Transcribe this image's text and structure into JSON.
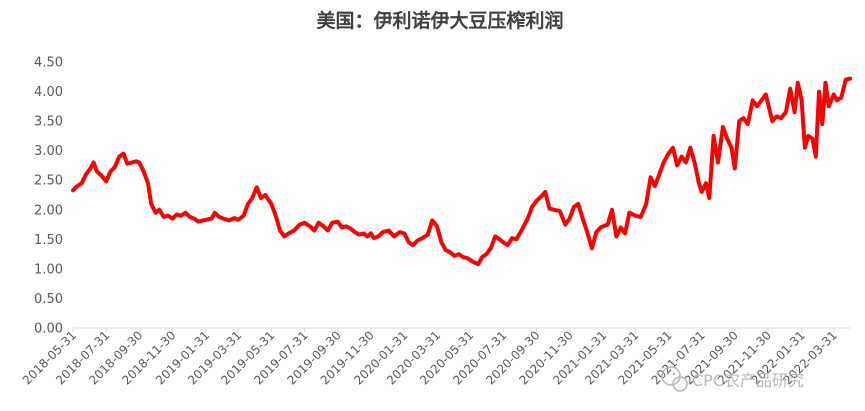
{
  "chart_data": {
    "type": "line",
    "title": "美国：伊利诺伊大豆压榨利润",
    "xlabel": "",
    "ylabel": "",
    "ylim": [
      0,
      4.5
    ],
    "yticks": [
      "0.00",
      "0.50",
      "1.00",
      "1.50",
      "2.00",
      "2.50",
      "3.00",
      "3.50",
      "4.00",
      "4.50"
    ],
    "xticks": [
      "2018-05-31",
      "2018-07-31",
      "2018-09-30",
      "2018-11-30",
      "2019-01-31",
      "2019-03-31",
      "2019-05-31",
      "2019-07-31",
      "2019-09-30",
      "2019-11-30",
      "2020-01-31",
      "2020-03-31",
      "2020-05-31",
      "2020-07-31",
      "2020-09-30",
      "2020-11-30",
      "2021-01-31",
      "2021-03-31",
      "2021-05-31",
      "2021-07-31",
      "2021-09-30",
      "2021-11-30",
      "2022-01-31",
      "2022-03-31"
    ],
    "x_range": [
      "2018-05-31",
      "2022-04-30"
    ],
    "grid": false,
    "legend": "none",
    "line_color": "#ff0000",
    "series": [
      {
        "points": [
          [
            "2018-05-31",
            2.33
          ],
          [
            "2018-06-08",
            2.4
          ],
          [
            "2018-06-16",
            2.45
          ],
          [
            "2018-06-24",
            2.6
          ],
          [
            "2018-07-02",
            2.7
          ],
          [
            "2018-07-08",
            2.8
          ],
          [
            "2018-07-14",
            2.65
          ],
          [
            "2018-07-22",
            2.58
          ],
          [
            "2018-07-31",
            2.48
          ],
          [
            "2018-08-08",
            2.65
          ],
          [
            "2018-08-16",
            2.72
          ],
          [
            "2018-08-24",
            2.9
          ],
          [
            "2018-09-01",
            2.95
          ],
          [
            "2018-09-08",
            2.78
          ],
          [
            "2018-09-16",
            2.8
          ],
          [
            "2018-09-24",
            2.82
          ],
          [
            "2018-09-30",
            2.8
          ],
          [
            "2018-10-08",
            2.65
          ],
          [
            "2018-10-16",
            2.45
          ],
          [
            "2018-10-22",
            2.1
          ],
          [
            "2018-10-30",
            1.95
          ],
          [
            "2018-11-06",
            2.0
          ],
          [
            "2018-11-14",
            1.88
          ],
          [
            "2018-11-22",
            1.9
          ],
          [
            "2018-11-30",
            1.85
          ],
          [
            "2018-12-08",
            1.92
          ],
          [
            "2018-12-16",
            1.9
          ],
          [
            "2018-12-24",
            1.95
          ],
          [
            "2019-01-01",
            1.88
          ],
          [
            "2019-01-09",
            1.85
          ],
          [
            "2019-01-17",
            1.8
          ],
          [
            "2019-01-25",
            1.82
          ],
          [
            "2019-01-31",
            1.83
          ],
          [
            "2019-02-10",
            1.85
          ],
          [
            "2019-02-16",
            1.95
          ],
          [
            "2019-02-24",
            1.88
          ],
          [
            "2019-03-04",
            1.85
          ],
          [
            "2019-03-14",
            1.82
          ],
          [
            "2019-03-24",
            1.86
          ],
          [
            "2019-03-31",
            1.83
          ],
          [
            "2019-04-10",
            1.9
          ],
          [
            "2019-04-18",
            2.1
          ],
          [
            "2019-04-26",
            2.2
          ],
          [
            "2019-05-04",
            2.38
          ],
          [
            "2019-05-12",
            2.2
          ],
          [
            "2019-05-20",
            2.25
          ],
          [
            "2019-05-31",
            2.1
          ],
          [
            "2019-06-08",
            1.9
          ],
          [
            "2019-06-16",
            1.65
          ],
          [
            "2019-06-24",
            1.55
          ],
          [
            "2019-07-02",
            1.6
          ],
          [
            "2019-07-12",
            1.65
          ],
          [
            "2019-07-22",
            1.75
          ],
          [
            "2019-07-31",
            1.78
          ],
          [
            "2019-08-10",
            1.72
          ],
          [
            "2019-08-18",
            1.65
          ],
          [
            "2019-08-26",
            1.78
          ],
          [
            "2019-09-04",
            1.72
          ],
          [
            "2019-09-12",
            1.65
          ],
          [
            "2019-09-20",
            1.78
          ],
          [
            "2019-09-30",
            1.8
          ],
          [
            "2019-10-08",
            1.7
          ],
          [
            "2019-10-16",
            1.72
          ],
          [
            "2019-10-24",
            1.68
          ],
          [
            "2019-11-01",
            1.62
          ],
          [
            "2019-11-09",
            1.58
          ],
          [
            "2019-11-17",
            1.6
          ],
          [
            "2019-11-24",
            1.55
          ],
          [
            "2019-11-30",
            1.6
          ],
          [
            "2019-12-06",
            1.52
          ],
          [
            "2019-12-14",
            1.55
          ],
          [
            "2019-12-22",
            1.62
          ],
          [
            "2020-01-02",
            1.65
          ],
          [
            "2020-01-12",
            1.55
          ],
          [
            "2020-01-22",
            1.62
          ],
          [
            "2020-01-31",
            1.6
          ],
          [
            "2020-02-08",
            1.45
          ],
          [
            "2020-02-16",
            1.4
          ],
          [
            "2020-02-24",
            1.48
          ],
          [
            "2020-03-04",
            1.52
          ],
          [
            "2020-03-14",
            1.58
          ],
          [
            "2020-03-22",
            1.82
          ],
          [
            "2020-03-31",
            1.72
          ],
          [
            "2020-04-08",
            1.45
          ],
          [
            "2020-04-16",
            1.32
          ],
          [
            "2020-04-24",
            1.28
          ],
          [
            "2020-05-02",
            1.22
          ],
          [
            "2020-05-10",
            1.25
          ],
          [
            "2020-05-18",
            1.2
          ],
          [
            "2020-05-26",
            1.18
          ],
          [
            "2020-06-05",
            1.12
          ],
          [
            "2020-06-15",
            1.08
          ],
          [
            "2020-06-22",
            1.2
          ],
          [
            "2020-06-30",
            1.25
          ],
          [
            "2020-07-08",
            1.35
          ],
          [
            "2020-07-16",
            1.55
          ],
          [
            "2020-07-24",
            1.5
          ],
          [
            "2020-07-31",
            1.45
          ],
          [
            "2020-08-08",
            1.4
          ],
          [
            "2020-08-16",
            1.52
          ],
          [
            "2020-08-24",
            1.5
          ],
          [
            "2020-09-04",
            1.68
          ],
          [
            "2020-09-14",
            1.85
          ],
          [
            "2020-09-22",
            2.05
          ],
          [
            "2020-09-30",
            2.15
          ],
          [
            "2020-10-08",
            2.22
          ],
          [
            "2020-10-16",
            2.3
          ],
          [
            "2020-10-24",
            2.02
          ],
          [
            "2020-11-02",
            2.0
          ],
          [
            "2020-11-12",
            1.98
          ],
          [
            "2020-11-22",
            1.75
          ],
          [
            "2020-11-30",
            1.85
          ],
          [
            "2020-12-08",
            2.05
          ],
          [
            "2020-12-16",
            2.1
          ],
          [
            "2020-12-24",
            1.85
          ],
          [
            "2021-01-02",
            1.6
          ],
          [
            "2021-01-10",
            1.35
          ],
          [
            "2021-01-18",
            1.62
          ],
          [
            "2021-01-26",
            1.7
          ],
          [
            "2021-01-31",
            1.72
          ],
          [
            "2021-02-08",
            1.75
          ],
          [
            "2021-02-16",
            2.0
          ],
          [
            "2021-02-24",
            1.55
          ],
          [
            "2021-03-04",
            1.7
          ],
          [
            "2021-03-12",
            1.6
          ],
          [
            "2021-03-20",
            1.95
          ],
          [
            "2021-03-31",
            1.9
          ],
          [
            "2021-04-10",
            1.88
          ],
          [
            "2021-04-20",
            2.1
          ],
          [
            "2021-04-28",
            2.55
          ],
          [
            "2021-05-06",
            2.4
          ],
          [
            "2021-05-14",
            2.6
          ],
          [
            "2021-05-22",
            2.8
          ],
          [
            "2021-05-31",
            2.95
          ],
          [
            "2021-06-08",
            3.05
          ],
          [
            "2021-06-16",
            2.75
          ],
          [
            "2021-06-24",
            2.9
          ],
          [
            "2021-07-02",
            2.8
          ],
          [
            "2021-07-10",
            3.05
          ],
          [
            "2021-07-18",
            2.8
          ],
          [
            "2021-07-26",
            2.45
          ],
          [
            "2021-07-31",
            2.3
          ],
          [
            "2021-08-08",
            2.45
          ],
          [
            "2021-08-14",
            2.2
          ],
          [
            "2021-08-22",
            3.25
          ],
          [
            "2021-08-30",
            2.8
          ],
          [
            "2021-09-08",
            3.4
          ],
          [
            "2021-09-16",
            3.2
          ],
          [
            "2021-09-24",
            3.05
          ],
          [
            "2021-09-30",
            2.7
          ],
          [
            "2021-10-08",
            3.5
          ],
          [
            "2021-10-16",
            3.55
          ],
          [
            "2021-10-24",
            3.45
          ],
          [
            "2021-11-02",
            3.85
          ],
          [
            "2021-11-10",
            3.75
          ],
          [
            "2021-11-18",
            3.85
          ],
          [
            "2021-11-26",
            3.95
          ],
          [
            "2021-11-30",
            3.8
          ],
          [
            "2021-12-08",
            3.5
          ],
          [
            "2021-12-16",
            3.58
          ],
          [
            "2021-12-24",
            3.55
          ],
          [
            "2022-01-02",
            3.65
          ],
          [
            "2022-01-10",
            4.05
          ],
          [
            "2022-01-18",
            3.65
          ],
          [
            "2022-01-24",
            4.15
          ],
          [
            "2022-01-31",
            3.85
          ],
          [
            "2022-02-06",
            3.05
          ],
          [
            "2022-02-12",
            3.25
          ],
          [
            "2022-02-20",
            3.2
          ],
          [
            "2022-02-26",
            2.9
          ],
          [
            "2022-03-04",
            4.0
          ],
          [
            "2022-03-10",
            3.45
          ],
          [
            "2022-03-16",
            4.15
          ],
          [
            "2022-03-22",
            3.75
          ],
          [
            "2022-03-31",
            3.95
          ],
          [
            "2022-04-06",
            3.85
          ],
          [
            "2022-04-14",
            3.9
          ],
          [
            "2022-04-22",
            4.2
          ],
          [
            "2022-04-30",
            4.22
          ]
        ]
      }
    ]
  },
  "watermark": {
    "icon": "wechat-logo-icon",
    "text": "CPC农产品研究"
  }
}
